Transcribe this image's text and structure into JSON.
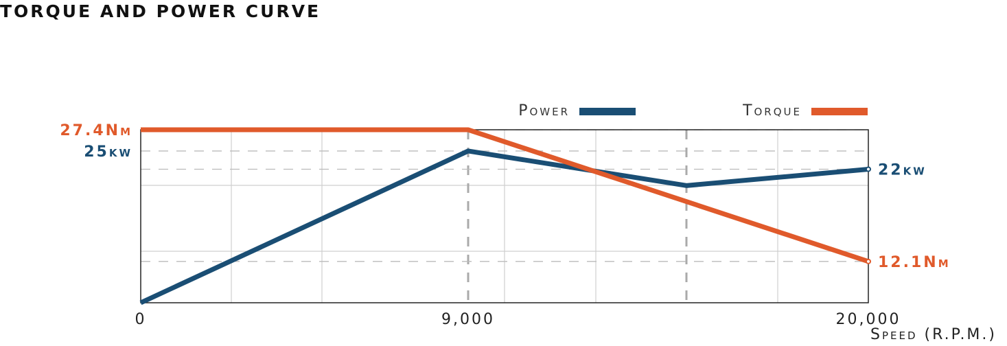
{
  "chart_data": {
    "type": "line",
    "title": "TORQUE AND POWER CURVE",
    "x_label": "Speed (R.P.M.)",
    "xlim": [
      0,
      20000
    ],
    "xticks": [
      0,
      {
        "value": 9000,
        "label": "9,000"
      },
      {
        "value": 20000,
        "label": "20,000"
      }
    ],
    "ylim": [
      0,
      28.5
    ],
    "y2lim": [
      7.3,
      27.4
    ],
    "grid": true,
    "legend": "top-right",
    "series": [
      {
        "name": "Power",
        "color": "#1a4e74",
        "x": [
          0,
          9000,
          15000,
          20000
        ],
        "values": [
          0,
          25,
          19.3,
          22
        ],
        "value_labels": [
          null,
          "25kw",
          null,
          "22kw"
        ]
      },
      {
        "name": "Torque",
        "color": "#e05a2b",
        "axis": "y2",
        "x": [
          0,
          9000,
          20000
        ],
        "values": [
          27.4,
          27.4,
          12.1
        ],
        "value_labels": [
          "27.4Nm",
          null,
          "12.1Nm"
        ]
      }
    ]
  }
}
